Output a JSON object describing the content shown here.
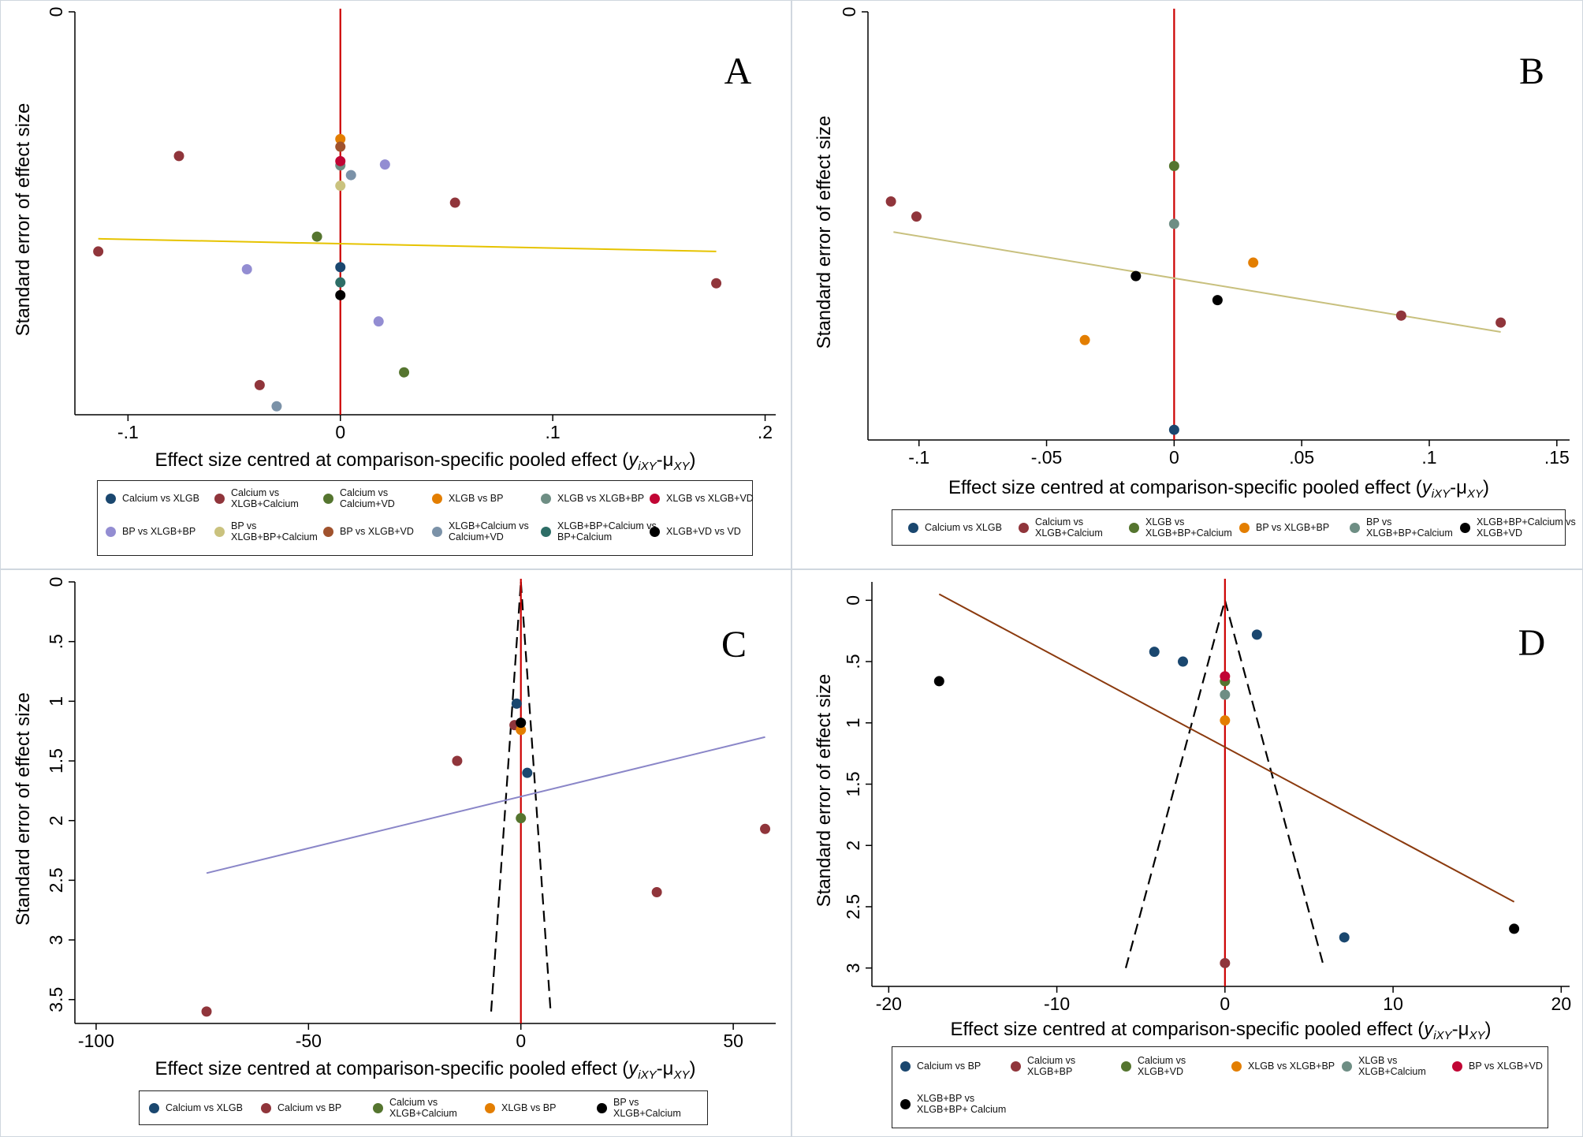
{
  "chart_data": [
    {
      "type": "scatter",
      "panel_letter": "A",
      "xlabel_main": "Effect size centred at comparison-specific pooled effect (",
      "xlabel_y": "y",
      "xlabel_ysub": "iXY",
      "xlabel_mid": "-μ",
      "xlabel_musub": "XY",
      "xlabel_close": ")",
      "ylabel": "Standard error of effect size",
      "xlim": [
        -0.125,
        0.205
      ],
      "ylim": [
        0,
        0.095
      ],
      "xticks": [
        -0.1,
        0,
        0.1,
        0.2
      ],
      "xtick_labels": [
        "-.1",
        "0",
        ".1",
        ".2"
      ],
      "yticks": [
        0
      ],
      "ytick_labels": [
        "0"
      ],
      "zero_line_color": "#cc0000",
      "regression": {
        "color": "#e6c300",
        "x": [
          -0.114,
          0.177
        ],
        "y": [
          0.0535,
          0.0565
        ]
      },
      "funnel": null,
      "series": [
        {
          "name": "Calcium vs XLGB",
          "color": "#1a476f",
          "points": [
            [
              0,
              0.0602
            ]
          ]
        },
        {
          "name": "Calcium vs XLGB+Calcium",
          "color": "#90353b",
          "points": [
            [
              -0.076,
              0.034
            ],
            [
              0.054,
              0.045
            ],
            [
              -0.114,
              0.0565
            ],
            [
              0.177,
              0.064
            ],
            [
              -0.038,
              0.088
            ]
          ]
        },
        {
          "name": "Calcium vs Calcium+VD",
          "color": "#55752f",
          "points": [
            [
              -0.011,
              0.053
            ],
            [
              0.03,
              0.085
            ]
          ]
        },
        {
          "name": "XLGB vs BP",
          "color": "#e37e00",
          "points": [
            [
              0,
              0.03
            ]
          ]
        },
        {
          "name": "XLGB vs XLGB+BP",
          "color": "#6e8e84",
          "points": [
            [
              0,
              0.0362
            ]
          ]
        },
        {
          "name": "XLGB vs XLGB+VD",
          "color": "#c10534",
          "points": [
            [
              0,
              0.0352
            ]
          ]
        },
        {
          "name": "BP vs XLGB+BP",
          "color": "#938dd2",
          "points": [
            [
              0.021,
              0.036
            ],
            [
              -0.044,
              0.0607
            ],
            [
              0.018,
              0.073
            ]
          ]
        },
        {
          "name": "BP vs XLGB+BP+Calcium",
          "color": "#cac27e",
          "points": [
            [
              0,
              0.041
            ]
          ]
        },
        {
          "name": "BP vs XLGB+VD",
          "color": "#a0522d",
          "points": [
            [
              0,
              0.0318
            ]
          ]
        },
        {
          "name": "XLGB+Calcium vs Calcium+VD",
          "color": "#7b92a8",
          "points": [
            [
              0.005,
              0.0385
            ],
            [
              -0.03,
              0.093
            ]
          ]
        },
        {
          "name": "XLGB+BP+Calcium vs BP+Calcium",
          "color": "#2d6d66",
          "points": [
            [
              0,
              0.0638
            ]
          ]
        },
        {
          "name": "XLGB+VD vs VD",
          "color": "#000000",
          "points": [
            [
              0,
              0.0668
            ]
          ]
        }
      ],
      "legend": [
        {
          "label": "Calcium vs XLGB",
          "color": "#1a476f"
        },
        {
          "label": "Calcium vs XLGB+Calcium",
          "color": "#90353b"
        },
        {
          "label": "Calcium vs Calcium+VD",
          "color": "#55752f"
        },
        {
          "label": "XLGB vs BP",
          "color": "#e37e00"
        },
        {
          "label": "XLGB vs XLGB+BP",
          "color": "#6e8e84"
        },
        {
          "label": "XLGB vs XLGB+VD",
          "color": "#c10534"
        },
        {
          "label": "BP vs XLGB+BP",
          "color": "#938dd2"
        },
        {
          "label": "BP vs XLGB+BP+Calcium",
          "color": "#cac27e"
        },
        {
          "label": "BP vs XLGB+VD",
          "color": "#a0522d"
        },
        {
          "label": "XLGB+Calcium vs Calcium+VD",
          "color": "#7b92a8"
        },
        {
          "label": "XLGB+BP+Calcium vs BP+Calcium",
          "color": "#2d6d66"
        },
        {
          "label": "XLGB+VD vs VD",
          "color": "#000000"
        }
      ]
    },
    {
      "type": "scatter",
      "panel_letter": "B",
      "xlabel_main": "Effect size centred at comparison-specific pooled effect (",
      "xlabel_y": "y",
      "xlabel_ysub": "iXY",
      "xlabel_mid": "-μ",
      "xlabel_musub": "XY",
      "xlabel_close": ")",
      "ylabel": "Standard error of effect size",
      "xlim": [
        -0.12,
        0.155
      ],
      "ylim": [
        0,
        0.105
      ],
      "xticks": [
        -0.1,
        -0.05,
        0,
        0.05,
        0.1,
        0.15
      ],
      "xtick_labels": [
        "-.1",
        "-.05",
        "0",
        ".05",
        ".1",
        ".15"
      ],
      "yticks": [
        0
      ],
      "ytick_labels": [
        "0"
      ],
      "zero_line_color": "#cc0000",
      "regression": {
        "color": "#c8c07e",
        "x": [
          -0.11,
          0.128
        ],
        "y": [
          0.054,
          0.0785
        ]
      },
      "funnel": null,
      "series": [
        {
          "name": "Calcium vs XLGB",
          "color": "#1a476f",
          "points": [
            [
              0,
              0.1025
            ]
          ]
        },
        {
          "name": "Calcium vs XLGB+Calcium",
          "color": "#90353b",
          "points": [
            [
              -0.111,
              0.0465
            ],
            [
              -0.101,
              0.0502
            ],
            [
              0.089,
              0.0745
            ],
            [
              0.128,
              0.0762
            ]
          ]
        },
        {
          "name": "XLGB vs XLGB+BP+Calcium",
          "color": "#55752f",
          "points": [
            [
              0,
              0.0378
            ]
          ]
        },
        {
          "name": "BP vs XLGB+BP",
          "color": "#e37e00",
          "points": [
            [
              0.031,
              0.0615
            ],
            [
              -0.035,
              0.0805
            ]
          ]
        },
        {
          "name": "BP vs XLGB+BP+Calcium",
          "color": "#6e8e84",
          "points": [
            [
              0,
              0.052
            ]
          ]
        },
        {
          "name": "XLGB+BP+Calcium vs XLGB+VD",
          "color": "#000000",
          "points": [
            [
              -0.015,
              0.0648
            ],
            [
              0.017,
              0.0707
            ]
          ]
        }
      ],
      "legend": [
        {
          "label": "Calcium vs XLGB",
          "color": "#1a476f"
        },
        {
          "label": "Calcium vs XLGB+Calcium",
          "color": "#90353b"
        },
        {
          "label": "XLGB vs XLGB+BP+Calcium",
          "color": "#55752f"
        },
        {
          "label": "BP vs XLGB+BP",
          "color": "#e37e00"
        },
        {
          "label": "BP vs XLGB+BP+Calcium",
          "color": "#6e8e84"
        },
        {
          "label": "XLGB+BP+Calcium vs XLGB+VD",
          "color": "#000000"
        }
      ]
    },
    {
      "type": "scatter",
      "panel_letter": "C",
      "xlabel_main": "Effect size centred at comparison-specific pooled effect (",
      "xlabel_y": "y",
      "xlabel_ysub": "iXY",
      "xlabel_mid": "-μ",
      "xlabel_musub": "XY",
      "xlabel_close": ")",
      "ylabel": "Standard error of effect size",
      "xlim": [
        -105,
        60
      ],
      "ylim": [
        0,
        3.7
      ],
      "xticks": [
        -100,
        -50,
        0,
        50
      ],
      "xtick_labels": [
        "-100",
        "-50",
        "0",
        "50"
      ],
      "yticks": [
        0,
        0.5,
        1,
        1.5,
        2,
        2.5,
        3,
        3.5
      ],
      "ytick_labels": [
        "0",
        ".5",
        "1",
        "1.5",
        "2",
        "2.5",
        "3",
        "3.5"
      ],
      "zero_line_color": "#cc0000",
      "regression": {
        "color": "#8a86c8",
        "x": [
          -74,
          57.5
        ],
        "y": [
          2.44,
          1.3
        ]
      },
      "funnel": {
        "x": [
          -7,
          0,
          7
        ],
        "y": [
          3.6,
          0,
          3.6
        ]
      },
      "series": [
        {
          "name": "Calcium vs XLGB",
          "color": "#1a476f",
          "points": [
            [
              -1,
              1.02
            ],
            [
              1.5,
              1.6
            ]
          ]
        },
        {
          "name": "Calcium vs BP",
          "color": "#90353b",
          "points": [
            [
              -15,
              1.5
            ],
            [
              32,
              2.6
            ],
            [
              57.5,
              2.07
            ],
            [
              -74,
              3.6
            ],
            [
              -1.5,
              1.2
            ]
          ]
        },
        {
          "name": "Calcium vs XLGB+Calcium",
          "color": "#55752f",
          "points": [
            [
              0,
              1.98
            ]
          ]
        },
        {
          "name": "XLGB vs BP",
          "color": "#e37e00",
          "points": [
            [
              0,
              1.24
            ]
          ]
        },
        {
          "name": "BP vs XLGB+Calcium",
          "color": "#000000",
          "points": [
            [
              0,
              1.18
            ]
          ]
        }
      ],
      "legend": [
        {
          "label": "Calcium vs XLGB",
          "color": "#1a476f"
        },
        {
          "label": "Calcium vs BP",
          "color": "#90353b"
        },
        {
          "label": "Calcium vs XLGB+Calcium",
          "color": "#55752f"
        },
        {
          "label": "XLGB vs BP",
          "color": "#e37e00"
        },
        {
          "label": "BP vs XLGB+Calcium",
          "color": "#000000"
        }
      ]
    },
    {
      "type": "scatter",
      "panel_letter": "D",
      "xlabel_main": "Effect size centred at comparison-specific pooled effect (",
      "xlabel_y": "y",
      "xlabel_ysub": "iXY",
      "xlabel_mid": "-μ",
      "xlabel_musub": "XY",
      "xlabel_close": ")",
      "ylabel": "Standard error of effect size",
      "xlim": [
        -21,
        20.5
      ],
      "ylim": [
        -0.15,
        3.15
      ],
      "xticks": [
        -20,
        -10,
        0,
        10,
        20
      ],
      "xtick_labels": [
        "-20",
        "-10",
        "0",
        "10",
        "20"
      ],
      "yticks": [
        0,
        0.5,
        1,
        1.5,
        2,
        2.5,
        3
      ],
      "ytick_labels": [
        "0",
        ".5",
        "1",
        "1.5",
        "2",
        "2.5",
        "3"
      ],
      "zero_line_color": "#cc0000",
      "regression": {
        "color": "#8b3a0e",
        "x": [
          -17,
          17.2
        ],
        "y": [
          -0.05,
          2.46
        ]
      },
      "funnel": {
        "x": [
          -5.9,
          0,
          5.9
        ],
        "y": [
          3,
          0,
          3
        ]
      },
      "series": [
        {
          "name": "Calcium vs BP",
          "color": "#1a476f",
          "points": [
            [
              1.9,
              0.28
            ],
            [
              -4.2,
              0.42
            ],
            [
              -2.5,
              0.5
            ],
            [
              7.1,
              2.75
            ]
          ]
        },
        {
          "name": "Calcium vs XLGB+BP",
          "color": "#90353b",
          "points": [
            [
              0,
              2.96
            ]
          ]
        },
        {
          "name": "Calcium vs XLGB+VD",
          "color": "#55752f",
          "points": [
            [
              0,
              0.66
            ]
          ]
        },
        {
          "name": "XLGB vs XLGB+BP",
          "color": "#e37e00",
          "points": [
            [
              0,
              0.98
            ]
          ]
        },
        {
          "name": "XLGB vs XLGB+Calcium",
          "color": "#6e8e84",
          "points": [
            [
              0,
              0.77
            ]
          ]
        },
        {
          "name": "BP vs XLGB+VD",
          "color": "#c10534",
          "points": [
            [
              0,
              0.62
            ]
          ]
        },
        {
          "name": "XLGB+BP vs XLGB+BP+ Calcium",
          "color": "#000000",
          "points": [
            [
              -17,
              0.66
            ],
            [
              17.2,
              2.68
            ]
          ]
        }
      ],
      "legend": [
        {
          "label": "Calcium vs BP",
          "color": "#1a476f"
        },
        {
          "label": "Calcium vs XLGB+BP",
          "color": "#90353b"
        },
        {
          "label": "Calcium vs XLGB+VD",
          "color": "#55752f"
        },
        {
          "label": "XLGB vs XLGB+BP",
          "color": "#e37e00"
        },
        {
          "label": "XLGB vs XLGB+Calcium",
          "color": "#6e8e84"
        },
        {
          "label": "BP vs XLGB+VD",
          "color": "#c10534"
        },
        {
          "label": "XLGB+BP vs XLGB+BP+ Calcium",
          "color": "#000000"
        }
      ]
    }
  ]
}
